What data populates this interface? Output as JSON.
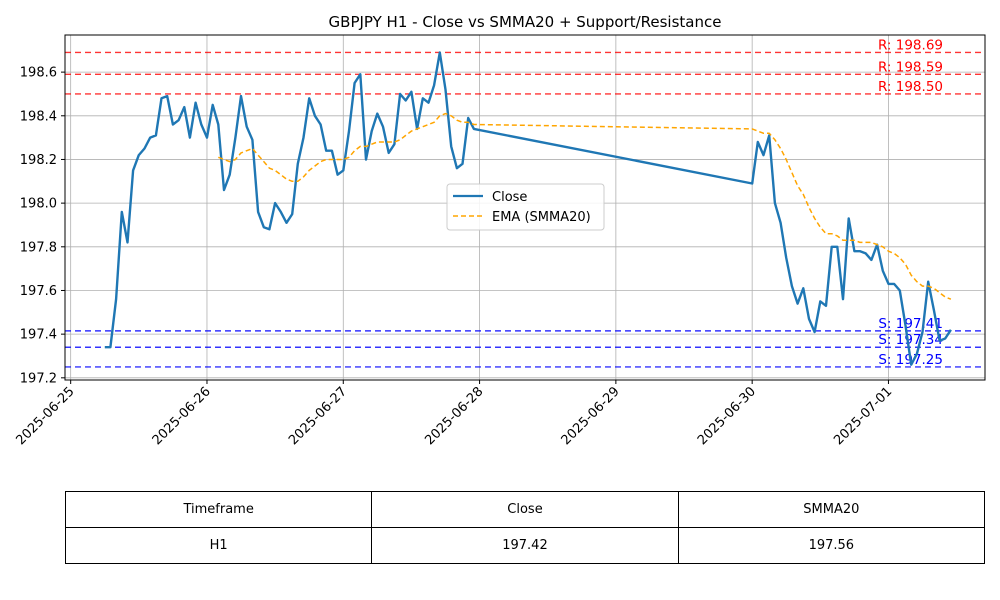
{
  "chart_data": {
    "type": "line",
    "title": "GBPJPY H1 - Close vs SMMA20 + Support/Resistance",
    "x_ticks": [
      "2025-06-25",
      "2025-06-26",
      "2025-06-27",
      "2025-06-28",
      "2025-06-29",
      "2025-06-30",
      "2025-07-01"
    ],
    "y_ticks": [
      "197.2",
      "197.4",
      "197.6",
      "197.8",
      "198.0",
      "198.2",
      "198.4",
      "198.6"
    ],
    "xlim": [
      "2025-06-24 23:00",
      "2025-07-01 17:00"
    ],
    "ylim": [
      197.19,
      198.77
    ],
    "grid": true,
    "legend_position": "center-right",
    "series": [
      {
        "name": "Close",
        "color": "#1f77b4",
        "style": "solid",
        "points": [
          [
            "2025-06-25 06:00",
            197.34
          ],
          [
            "2025-06-25 07:00",
            197.34
          ],
          [
            "2025-06-25 08:00",
            197.56
          ],
          [
            "2025-06-25 09:00",
            197.96
          ],
          [
            "2025-06-25 10:00",
            197.82
          ],
          [
            "2025-06-25 11:00",
            198.15
          ],
          [
            "2025-06-25 12:00",
            198.22
          ],
          [
            "2025-06-25 13:00",
            198.25
          ],
          [
            "2025-06-25 14:00",
            198.3
          ],
          [
            "2025-06-25 15:00",
            198.31
          ],
          [
            "2025-06-25 16:00",
            198.48
          ],
          [
            "2025-06-25 17:00",
            198.49
          ],
          [
            "2025-06-25 18:00",
            198.36
          ],
          [
            "2025-06-25 19:00",
            198.38
          ],
          [
            "2025-06-25 20:00",
            198.44
          ],
          [
            "2025-06-25 21:00",
            198.3
          ],
          [
            "2025-06-25 22:00",
            198.46
          ],
          [
            "2025-06-25 23:00",
            198.36
          ],
          [
            "2025-06-26 00:00",
            198.3
          ],
          [
            "2025-06-26 01:00",
            198.45
          ],
          [
            "2025-06-26 02:00",
            198.36
          ],
          [
            "2025-06-26 03:00",
            198.06
          ],
          [
            "2025-06-26 04:00",
            198.13
          ],
          [
            "2025-06-26 05:00",
            198.3
          ],
          [
            "2025-06-26 06:00",
            198.49
          ],
          [
            "2025-06-26 07:00",
            198.35
          ],
          [
            "2025-06-26 08:00",
            198.29
          ],
          [
            "2025-06-26 09:00",
            197.96
          ],
          [
            "2025-06-26 10:00",
            197.89
          ],
          [
            "2025-06-26 11:00",
            197.88
          ],
          [
            "2025-06-26 12:00",
            198.0
          ],
          [
            "2025-06-26 13:00",
            197.96
          ],
          [
            "2025-06-26 14:00",
            197.91
          ],
          [
            "2025-06-26 15:00",
            197.95
          ],
          [
            "2025-06-26 16:00",
            198.18
          ],
          [
            "2025-06-26 17:00",
            198.3
          ],
          [
            "2025-06-26 18:00",
            198.48
          ],
          [
            "2025-06-26 19:00",
            198.4
          ],
          [
            "2025-06-26 20:00",
            198.36
          ],
          [
            "2025-06-26 21:00",
            198.24
          ],
          [
            "2025-06-26 22:00",
            198.24
          ],
          [
            "2025-06-26 23:00",
            198.13
          ],
          [
            "2025-06-27 00:00",
            198.15
          ],
          [
            "2025-06-27 01:00",
            198.33
          ],
          [
            "2025-06-27 02:00",
            198.55
          ],
          [
            "2025-06-27 03:00",
            198.59
          ],
          [
            "2025-06-27 04:00",
            198.2
          ],
          [
            "2025-06-27 05:00",
            198.33
          ],
          [
            "2025-06-27 06:00",
            198.41
          ],
          [
            "2025-06-27 07:00",
            198.35
          ],
          [
            "2025-06-27 08:00",
            198.23
          ],
          [
            "2025-06-27 09:00",
            198.27
          ],
          [
            "2025-06-27 10:00",
            198.5
          ],
          [
            "2025-06-27 11:00",
            198.47
          ],
          [
            "2025-06-27 12:00",
            198.51
          ],
          [
            "2025-06-27 13:00",
            198.34
          ],
          [
            "2025-06-27 14:00",
            198.48
          ],
          [
            "2025-06-27 15:00",
            198.46
          ],
          [
            "2025-06-27 16:00",
            198.54
          ],
          [
            "2025-06-27 17:00",
            198.69
          ],
          [
            "2025-06-27 18:00",
            198.52
          ],
          [
            "2025-06-27 19:00",
            198.26
          ],
          [
            "2025-06-27 20:00",
            198.16
          ],
          [
            "2025-06-27 21:00",
            198.18
          ],
          [
            "2025-06-27 22:00",
            198.39
          ],
          [
            "2025-06-27 23:00",
            198.34
          ],
          [
            "2025-06-30 00:00",
            198.09
          ],
          [
            "2025-06-30 01:00",
            198.28
          ],
          [
            "2025-06-30 02:00",
            198.22
          ],
          [
            "2025-06-30 03:00",
            198.31
          ],
          [
            "2025-06-30 04:00",
            198.0
          ],
          [
            "2025-06-30 05:00",
            197.91
          ],
          [
            "2025-06-30 06:00",
            197.75
          ],
          [
            "2025-06-30 07:00",
            197.62
          ],
          [
            "2025-06-30 08:00",
            197.54
          ],
          [
            "2025-06-30 09:00",
            197.61
          ],
          [
            "2025-06-30 10:00",
            197.47
          ],
          [
            "2025-06-30 11:00",
            197.41
          ],
          [
            "2025-06-30 12:00",
            197.55
          ],
          [
            "2025-06-30 13:00",
            197.53
          ],
          [
            "2025-06-30 14:00",
            197.8
          ],
          [
            "2025-06-30 15:00",
            197.8
          ],
          [
            "2025-06-30 16:00",
            197.56
          ],
          [
            "2025-06-30 17:00",
            197.93
          ],
          [
            "2025-06-30 18:00",
            197.78
          ],
          [
            "2025-06-30 19:00",
            197.78
          ],
          [
            "2025-06-30 20:00",
            197.77
          ],
          [
            "2025-06-30 21:00",
            197.74
          ],
          [
            "2025-06-30 22:00",
            197.81
          ],
          [
            "2025-06-30 23:00",
            197.69
          ],
          [
            "2025-07-01 00:00",
            197.63
          ],
          [
            "2025-07-01 01:00",
            197.63
          ],
          [
            "2025-07-01 02:00",
            197.6
          ],
          [
            "2025-07-01 03:00",
            197.44
          ],
          [
            "2025-07-01 04:00",
            197.26
          ],
          [
            "2025-07-01 05:00",
            197.31
          ],
          [
            "2025-07-01 06:00",
            197.41
          ],
          [
            "2025-07-01 07:00",
            197.64
          ],
          [
            "2025-07-01 08:00",
            197.51
          ],
          [
            "2025-07-01 09:00",
            197.37
          ],
          [
            "2025-07-01 10:00",
            197.38
          ],
          [
            "2025-07-01 11:00",
            197.42
          ]
        ]
      },
      {
        "name": "EMA (SMMA20)",
        "color": "#ffa500",
        "style": "dashed",
        "points": [
          [
            "2025-06-26 02:00",
            198.21
          ],
          [
            "2025-06-26 03:00",
            198.2
          ],
          [
            "2025-06-26 04:00",
            198.19
          ],
          [
            "2025-06-26 05:00",
            198.2
          ],
          [
            "2025-06-26 06:00",
            198.23
          ],
          [
            "2025-06-26 07:00",
            198.24
          ],
          [
            "2025-06-26 08:00",
            198.25
          ],
          [
            "2025-06-26 09:00",
            198.22
          ],
          [
            "2025-06-26 10:00",
            198.19
          ],
          [
            "2025-06-26 11:00",
            198.16
          ],
          [
            "2025-06-26 12:00",
            198.15
          ],
          [
            "2025-06-26 13:00",
            198.13
          ],
          [
            "2025-06-26 14:00",
            198.11
          ],
          [
            "2025-06-26 15:00",
            198.1
          ],
          [
            "2025-06-26 16:00",
            198.1
          ],
          [
            "2025-06-26 17:00",
            198.12
          ],
          [
            "2025-06-26 18:00",
            198.15
          ],
          [
            "2025-06-26 19:00",
            198.17
          ],
          [
            "2025-06-26 20:00",
            198.19
          ],
          [
            "2025-06-26 21:00",
            198.2
          ],
          [
            "2025-06-26 22:00",
            198.2
          ],
          [
            "2025-06-26 23:00",
            198.2
          ],
          [
            "2025-06-27 00:00",
            198.2
          ],
          [
            "2025-06-27 01:00",
            198.21
          ],
          [
            "2025-06-27 02:00",
            198.24
          ],
          [
            "2025-06-27 03:00",
            198.26
          ],
          [
            "2025-06-27 04:00",
            198.26
          ],
          [
            "2025-06-27 05:00",
            198.27
          ],
          [
            "2025-06-27 06:00",
            198.28
          ],
          [
            "2025-06-27 07:00",
            198.28
          ],
          [
            "2025-06-27 08:00",
            198.28
          ],
          [
            "2025-06-27 09:00",
            198.28
          ],
          [
            "2025-06-27 10:00",
            198.29
          ],
          [
            "2025-06-27 11:00",
            198.31
          ],
          [
            "2025-06-27 12:00",
            198.33
          ],
          [
            "2025-06-27 13:00",
            198.34
          ],
          [
            "2025-06-27 14:00",
            198.35
          ],
          [
            "2025-06-27 15:00",
            198.36
          ],
          [
            "2025-06-27 16:00",
            198.37
          ],
          [
            "2025-06-27 17:00",
            198.4
          ],
          [
            "2025-06-27 18:00",
            198.41
          ],
          [
            "2025-06-27 19:00",
            198.4
          ],
          [
            "2025-06-27 20:00",
            198.38
          ],
          [
            "2025-06-27 21:00",
            198.37
          ],
          [
            "2025-06-27 22:00",
            198.37
          ],
          [
            "2025-06-27 23:00",
            198.36
          ],
          [
            "2025-06-30 00:00",
            198.34
          ],
          [
            "2025-06-30 01:00",
            198.33
          ],
          [
            "2025-06-30 02:00",
            198.32
          ],
          [
            "2025-06-30 03:00",
            198.32
          ],
          [
            "2025-06-30 04:00",
            198.29
          ],
          [
            "2025-06-30 05:00",
            198.25
          ],
          [
            "2025-06-30 06:00",
            198.2
          ],
          [
            "2025-06-30 07:00",
            198.14
          ],
          [
            "2025-06-30 08:00",
            198.08
          ],
          [
            "2025-06-30 09:00",
            198.04
          ],
          [
            "2025-06-30 10:00",
            197.98
          ],
          [
            "2025-06-30 11:00",
            197.93
          ],
          [
            "2025-06-30 12:00",
            197.89
          ],
          [
            "2025-06-30 13:00",
            197.86
          ],
          [
            "2025-06-30 14:00",
            197.86
          ],
          [
            "2025-06-30 15:00",
            197.85
          ],
          [
            "2025-06-30 16:00",
            197.83
          ],
          [
            "2025-06-30 17:00",
            197.83
          ],
          [
            "2025-06-30 18:00",
            197.83
          ],
          [
            "2025-06-30 19:00",
            197.82
          ],
          [
            "2025-06-30 20:00",
            197.82
          ],
          [
            "2025-06-30 21:00",
            197.82
          ],
          [
            "2025-06-30 22:00",
            197.81
          ],
          [
            "2025-06-30 23:00",
            197.8
          ],
          [
            "2025-07-01 00:00",
            197.78
          ],
          [
            "2025-07-01 01:00",
            197.77
          ],
          [
            "2025-07-01 02:00",
            197.75
          ],
          [
            "2025-07-01 03:00",
            197.72
          ],
          [
            "2025-07-01 04:00",
            197.67
          ],
          [
            "2025-07-01 05:00",
            197.64
          ],
          [
            "2025-07-01 06:00",
            197.62
          ],
          [
            "2025-07-01 07:00",
            197.62
          ],
          [
            "2025-07-01 08:00",
            197.61
          ],
          [
            "2025-07-01 09:00",
            197.59
          ],
          [
            "2025-07-01 10:00",
            197.57
          ],
          [
            "2025-07-01 11:00",
            197.56
          ]
        ]
      }
    ],
    "levels": [
      {
        "kind": "resistance",
        "label": "R: 198.69",
        "value": 198.69,
        "color": "#ff0000"
      },
      {
        "kind": "resistance",
        "label": "R: 198.59",
        "value": 198.59,
        "color": "#ff0000"
      },
      {
        "kind": "resistance",
        "label": "R: 198.50",
        "value": 198.5,
        "color": "#ff0000"
      },
      {
        "kind": "support",
        "label": "S: 197.41",
        "value": 197.415,
        "color": "#0000ff"
      },
      {
        "kind": "support",
        "label": "S: 197.34",
        "value": 197.34,
        "color": "#0000ff"
      },
      {
        "kind": "support",
        "label": "S: 197.25",
        "value": 197.25,
        "color": "#0000ff"
      }
    ]
  },
  "summary_table": {
    "headers": [
      "Timeframe",
      "Close",
      "SMMA20"
    ],
    "row": [
      "H1",
      "197.42",
      "197.56"
    ]
  }
}
